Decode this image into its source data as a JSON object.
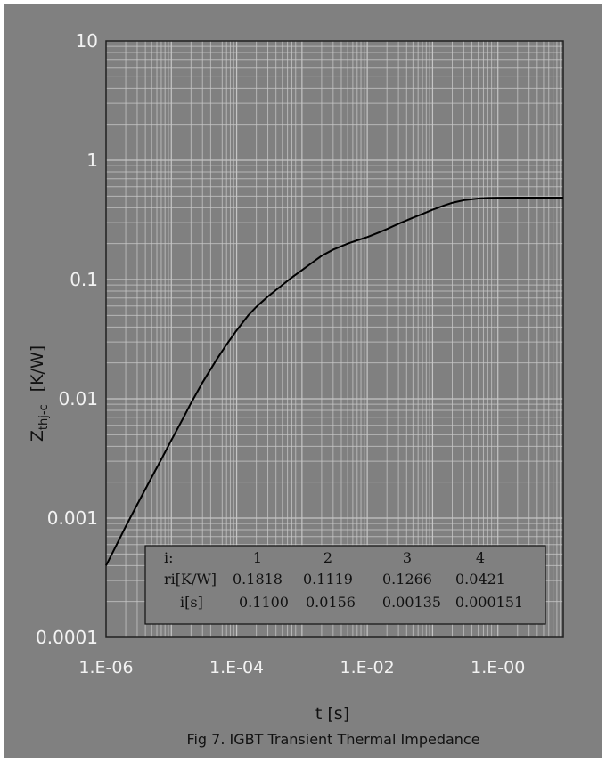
{
  "figure": {
    "caption": "Fig 7. IGBT Transient Thermal Impedance",
    "colors": {
      "background": "#808080",
      "plot_area": "#808080",
      "grid": "#c8c8c8",
      "curve": "#000000"
    }
  },
  "chart_data": {
    "type": "line",
    "title": "",
    "xlabel": "t  [s]",
    "ylabel_main": "Z",
    "ylabel_sub": "thj-c",
    "ylabel_unit": "[K/W]",
    "x_scale": "log",
    "y_scale": "log",
    "xlim": [
      1e-06,
      10
    ],
    "ylim": [
      0.0001,
      10
    ],
    "grid": true,
    "x_ticks": [
      1e-06,
      0.0001,
      0.01,
      1
    ],
    "x_tick_labels": [
      "1.E-06",
      "1.E-04",
      "1.E-02",
      "1.E-00"
    ],
    "y_ticks": [
      0.0001,
      0.001,
      0.01,
      0.1,
      1,
      10
    ],
    "y_tick_labels": [
      "0.0001",
      "0.001",
      "0.01",
      "0.1",
      "1",
      "10"
    ],
    "series": [
      {
        "x": [
          1e-06,
          1.5e-06,
          2e-06,
          3e-06,
          5e-06,
          7e-06,
          1e-05,
          1.5e-05,
          2e-05,
          3e-05,
          5e-05,
          7e-05,
          0.0001,
          0.00015,
          0.0002,
          0.0003,
          0.0005,
          0.0007,
          0.001,
          0.0015,
          0.002,
          0.003,
          0.005,
          0.007,
          0.01,
          0.015,
          0.02,
          0.03,
          0.05,
          0.07,
          0.1,
          0.15,
          0.2,
          0.3,
          0.5,
          0.7,
          1,
          2,
          5,
          10
        ],
        "values": [
          0.0004,
          0.00062,
          0.00085,
          0.0013,
          0.0022,
          0.0031,
          0.0045,
          0.0068,
          0.0092,
          0.0137,
          0.0216,
          0.0285,
          0.0375,
          0.05,
          0.059,
          0.072,
          0.09,
          0.104,
          0.12,
          0.141,
          0.158,
          0.178,
          0.2,
          0.213,
          0.227,
          0.248,
          0.265,
          0.293,
          0.33,
          0.355,
          0.385,
          0.418,
          0.44,
          0.462,
          0.478,
          0.483,
          0.485,
          0.486,
          0.486,
          0.486
        ]
      }
    ],
    "parameter_table": {
      "headers": [
        "i:",
        "1",
        "2",
        "3",
        "4"
      ],
      "rows": [
        [
          "ri[K/W]",
          "0.1818",
          "0.1119",
          "0.1266",
          "0.0421"
        ],
        [
          "i[s]",
          "0.1100",
          "0.0156",
          "0.00135",
          "0.000151"
        ]
      ]
    }
  }
}
